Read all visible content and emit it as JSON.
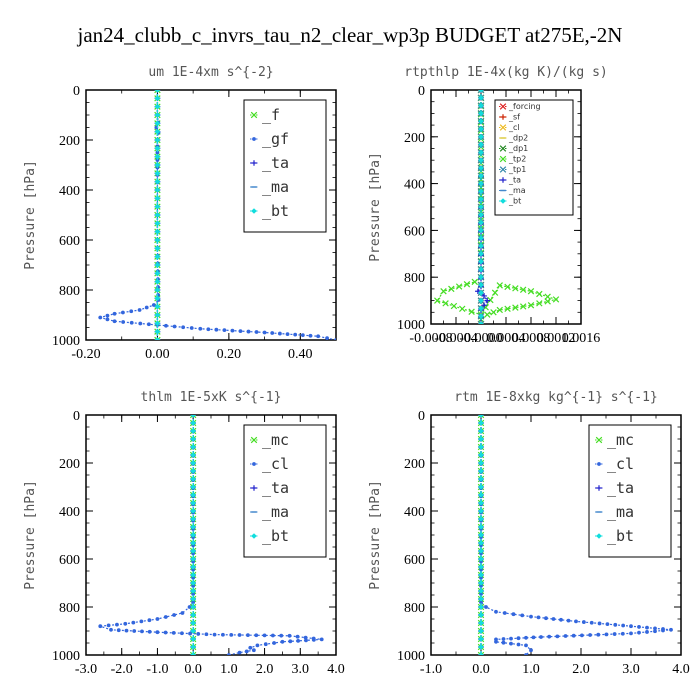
{
  "figure": {
    "title": "jan24_clubb_c_invrs_tau_n2_clear_wp3p  BUDGET at275E,-2N"
  },
  "chart_data": [
    {
      "type": "line",
      "title": "um  1E-4xm s^{-2}",
      "ylabel": "Pressure [hPa]",
      "xlabel": "",
      "xlim": [
        -0.2,
        0.5
      ],
      "ylim": [
        1000,
        0
      ],
      "xticks": [
        -0.2,
        0.0,
        0.2,
        0.4
      ],
      "xtick_labels": [
        "-0.20",
        "0.00",
        "0.20",
        "0.40"
      ],
      "yticks": [
        0,
        200,
        400,
        600,
        800,
        1000
      ],
      "ytick_labels": [
        "0",
        "200",
        "400",
        "600",
        "800",
        "1000"
      ],
      "legend_placement": "top-right",
      "legend_size": "large",
      "series": [
        {
          "name": "_f",
          "color": "#44dd22",
          "marker": "x",
          "x": [
            0,
            0,
            0,
            0,
            0,
            0,
            0,
            0,
            0,
            0,
            0
          ],
          "y": [
            0,
            100,
            200,
            300,
            400,
            500,
            600,
            700,
            800,
            900,
            1000
          ]
        },
        {
          "name": "_gf",
          "color": "#3366dd",
          "marker": "dot",
          "x": [
            0,
            0,
            0.002,
            -0.003,
            0.003,
            0,
            0,
            0,
            0,
            0.002,
            0.003,
            -0.01,
            -0.05,
            -0.12,
            -0.16,
            -0.12,
            0,
            0.12,
            0.3,
            0.45,
            0.5
          ],
          "y": [
            0,
            100,
            130,
            150,
            170,
            200,
            250,
            400,
            600,
            820,
            840,
            860,
            880,
            895,
            910,
            925,
            940,
            955,
            970,
            985,
            1000
          ]
        },
        {
          "name": "_ta",
          "color": "#2222cc",
          "marker": "+",
          "x": [
            0,
            0,
            0,
            0,
            0,
            0
          ],
          "y": [
            0,
            200,
            400,
            600,
            800,
            1000
          ]
        },
        {
          "name": "_ma",
          "color": "#4488cc",
          "marker": "-",
          "x": [
            0,
            0,
            0,
            0,
            0,
            0
          ],
          "y": [
            0,
            200,
            400,
            600,
            800,
            1000
          ]
        },
        {
          "name": "_bt",
          "color": "#11dddd",
          "marker": "diamond",
          "x": [
            0,
            0,
            0,
            0,
            0,
            0
          ],
          "y": [
            0,
            200,
            400,
            600,
            800,
            1000
          ]
        }
      ]
    },
    {
      "type": "line",
      "title": "rtpthlp  1E-4x(kg K)/(kg s)",
      "ylabel": "Pressure [hPa]",
      "xlabel": "",
      "xlim": [
        -0.0008,
        0.0016
      ],
      "ylim": [
        1000,
        0
      ],
      "xticks": [
        -0.0008,
        -0.0004,
        0.0,
        0.0004,
        0.0008,
        0.0012,
        0.0016
      ],
      "xtick_labels": [
        "-0.0008",
        "-0.0004",
        "-0.0000",
        "0.0004",
        "0.0008",
        "0.0012",
        "0.0016"
      ],
      "yticks": [
        0,
        200,
        400,
        600,
        800,
        1000
      ],
      "ytick_labels": [
        "0",
        "200",
        "400",
        "600",
        "800",
        "1000"
      ],
      "legend_placement": "top-right",
      "legend_size": "small",
      "series": [
        {
          "name": "_forcing",
          "color": "#dd2222",
          "marker": "x",
          "x": [
            0,
            0,
            0,
            0,
            0,
            0
          ],
          "y": [
            0,
            200,
            400,
            600,
            800,
            1000
          ]
        },
        {
          "name": "_sf",
          "color": "#cc2200",
          "marker": "+",
          "x": [
            0,
            0,
            0,
            0,
            0,
            0
          ],
          "y": [
            0,
            200,
            400,
            600,
            800,
            1000
          ]
        },
        {
          "name": "_cl",
          "color": "#eebb22",
          "marker": "x",
          "x": [
            0,
            0,
            0,
            0,
            0,
            0
          ],
          "y": [
            0,
            200,
            400,
            600,
            800,
            1000
          ]
        },
        {
          "name": "_dp2",
          "color": "#ddcc44",
          "marker": "-",
          "x": [
            0,
            0,
            0,
            0,
            0,
            0
          ],
          "y": [
            0,
            200,
            400,
            600,
            800,
            1000
          ]
        },
        {
          "name": "_dp1",
          "color": "#228822",
          "marker": "x",
          "x": [
            0,
            0,
            0,
            0,
            0,
            0
          ],
          "y": [
            0,
            200,
            400,
            600,
            800,
            1000
          ]
        },
        {
          "name": "_tp2",
          "color": "#44dd22",
          "marker": "x",
          "x": [
            0,
            0,
            -0.0001,
            -0.0006,
            -0.0007,
            -0.0003,
            0,
            0.0003,
            0.0008,
            0.0012,
            0.0008,
            0.0003,
            0.0001,
            0,
            0
          ],
          "y": [
            0,
            800,
            820,
            860,
            900,
            935,
            960,
            835,
            860,
            895,
            920,
            940,
            960,
            980,
            1000
          ]
        },
        {
          "name": "_tp1",
          "color": "#3388aa",
          "marker": "x",
          "x": [
            0,
            0,
            0,
            0,
            0,
            0
          ],
          "y": [
            0,
            200,
            400,
            600,
            800,
            1000
          ]
        },
        {
          "name": "_ta",
          "color": "#2222cc",
          "marker": "+",
          "x": [
            0,
            0,
            -5e-05,
            5e-05,
            0.0001,
            5e-05,
            0,
            0
          ],
          "y": [
            0,
            840,
            860,
            880,
            900,
            920,
            940,
            1000
          ]
        },
        {
          "name": "_ma",
          "color": "#4488cc",
          "marker": "-",
          "x": [
            0,
            0,
            0,
            0,
            0,
            0
          ],
          "y": [
            0,
            200,
            400,
            600,
            800,
            1000
          ]
        },
        {
          "name": "_bt",
          "color": "#11dddd",
          "marker": "diamond",
          "x": [
            0,
            0,
            0,
            0,
            0,
            0
          ],
          "y": [
            0,
            200,
            400,
            600,
            800,
            1000
          ]
        }
      ]
    },
    {
      "type": "line",
      "title": "thlm  1E-5xK s^{-1}",
      "ylabel": "Pressure [hPa]",
      "xlabel": "",
      "xlim": [
        -3.0,
        4.0
      ],
      "ylim": [
        1000,
        0
      ],
      "xticks": [
        -3.0,
        -2.0,
        -1.0,
        0.0,
        1.0,
        2.0,
        3.0,
        4.0
      ],
      "xtick_labels": [
        "-3.0",
        "-2.0",
        "-1.0",
        "0.0",
        "1.0",
        "2.0",
        "3.0",
        "4.0"
      ],
      "yticks": [
        0,
        200,
        400,
        600,
        800,
        1000
      ],
      "ytick_labels": [
        "0",
        "200",
        "400",
        "600",
        "800",
        "1000"
      ],
      "legend_placement": "top-right",
      "legend_size": "large",
      "series": [
        {
          "name": "_mc",
          "color": "#44dd22",
          "marker": "x",
          "x": [
            0,
            0,
            0,
            0,
            0,
            0,
            0,
            0,
            0,
            0,
            0
          ],
          "y": [
            0,
            100,
            200,
            300,
            400,
            500,
            600,
            700,
            800,
            900,
            1000
          ]
        },
        {
          "name": "_cl",
          "color": "#3366dd",
          "marker": "dot",
          "x": [
            0,
            0,
            -0.1,
            -0.3,
            -1.0,
            -1.9,
            -2.6,
            -2.3,
            -1.0,
            0.6,
            2.7,
            3.6,
            2.5,
            1.8,
            1.6,
            1.7,
            1.3,
            1.0
          ],
          "y": [
            0,
            780,
            800,
            825,
            850,
            870,
            880,
            895,
            905,
            915,
            920,
            935,
            945,
            960,
            970,
            980,
            990,
            1000
          ]
        },
        {
          "name": "_ta",
          "color": "#2222cc",
          "marker": "+",
          "x": [
            0,
            0,
            0,
            0,
            0,
            0
          ],
          "y": [
            0,
            200,
            400,
            600,
            800,
            1000
          ]
        },
        {
          "name": "_ma",
          "color": "#4488cc",
          "marker": "-",
          "x": [
            0,
            0,
            0,
            0,
            0,
            0
          ],
          "y": [
            0,
            200,
            400,
            600,
            800,
            1000
          ]
        },
        {
          "name": "_bt",
          "color": "#11dddd",
          "marker": "diamond",
          "x": [
            0,
            0,
            0,
            0,
            0,
            0
          ],
          "y": [
            0,
            200,
            400,
            600,
            800,
            1000
          ]
        }
      ]
    },
    {
      "type": "line",
      "title": "rtm  1E-8xkg kg^{-1} s^{-1}",
      "ylabel": "Pressure [hPa]",
      "xlabel": "",
      "xlim": [
        -1.0,
        4.0
      ],
      "ylim": [
        1000,
        0
      ],
      "xticks": [
        -1.0,
        0.0,
        1.0,
        2.0,
        3.0,
        4.0
      ],
      "xtick_labels": [
        "-1.0",
        "0.0",
        "1.0",
        "2.0",
        "3.0",
        "4.0"
      ],
      "yticks": [
        0,
        200,
        400,
        600,
        800,
        1000
      ],
      "ytick_labels": [
        "0",
        "200",
        "400",
        "600",
        "800",
        "1000"
      ],
      "legend_placement": "top-right",
      "legend_size": "large",
      "series": [
        {
          "name": "_mc",
          "color": "#44dd22",
          "marker": "x",
          "x": [
            0,
            0,
            0,
            0,
            0,
            0,
            0,
            0,
            0,
            0,
            0
          ],
          "y": [
            0,
            100,
            200,
            300,
            400,
            500,
            600,
            700,
            800,
            900,
            1000
          ]
        },
        {
          "name": "_cl",
          "color": "#3366dd",
          "marker": "dot",
          "x": [
            0,
            0,
            0.1,
            0.3,
            1.0,
            1.9,
            3.0,
            3.8,
            3.0,
            1.2,
            0.3,
            0.3,
            0.9,
            1.0,
            0.9
          ],
          "y": [
            0,
            780,
            800,
            820,
            840,
            860,
            880,
            895,
            910,
            925,
            935,
            945,
            960,
            980,
            1000
          ]
        },
        {
          "name": "_ta",
          "color": "#2222cc",
          "marker": "+",
          "x": [
            0,
            0,
            0,
            0,
            0,
            0
          ],
          "y": [
            0,
            200,
            400,
            600,
            800,
            1000
          ]
        },
        {
          "name": "_ma",
          "color": "#4488cc",
          "marker": "-",
          "x": [
            0,
            0,
            0,
            0,
            0,
            0
          ],
          "y": [
            0,
            200,
            400,
            600,
            800,
            1000
          ]
        },
        {
          "name": "_bt",
          "color": "#11dddd",
          "marker": "diamond",
          "x": [
            0,
            0,
            0,
            0,
            0,
            0
          ],
          "y": [
            0,
            200,
            400,
            600,
            800,
            1000
          ]
        }
      ]
    }
  ]
}
